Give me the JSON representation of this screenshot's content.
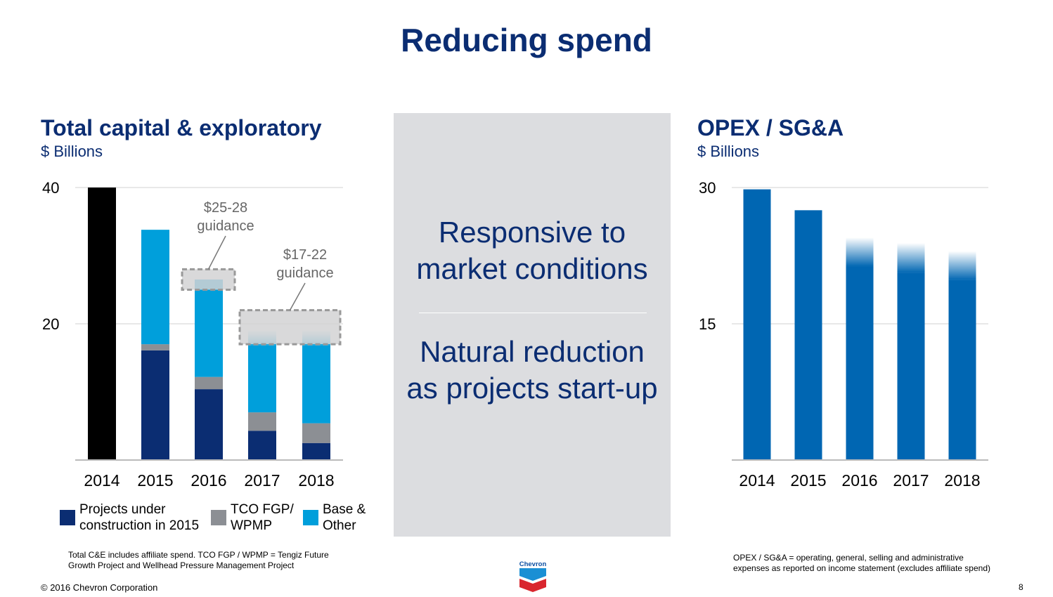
{
  "title": "Reducing spend",
  "center": {
    "line1": "Responsive to",
    "line2": "market conditions",
    "line3": "Natural reduction",
    "line4": "as projects start-up"
  },
  "chart_data": [
    {
      "type": "bar",
      "stacked": true,
      "title": "Total capital & exploratory",
      "subtitle": "$ Billions",
      "categories": [
        "2014",
        "2015",
        "2016",
        "2017",
        "2018"
      ],
      "ylim": [
        0,
        40
      ],
      "yticks": [
        "20",
        "40"
      ],
      "ytick_values": [
        20,
        40
      ],
      "grid": true,
      "series": [
        {
          "name": "Projects under construction in 2015",
          "color": "#0b2d72",
          "values": [
            0,
            16.1,
            10.4,
            4.3,
            2.5
          ]
        },
        {
          "name": "TCO FGP/ WPMP",
          "color": "#8c8f94",
          "values": [
            0,
            0.9,
            1.8,
            2.7,
            2.9
          ]
        },
        {
          "name": "Base & Other",
          "color": "#009fdb",
          "values": [
            0,
            16.8,
            14.3,
            12.1,
            13.7
          ]
        }
      ],
      "total_2014": {
        "value": 40,
        "color": "#000000"
      },
      "faded_top_categories": [
        "2017",
        "2018"
      ],
      "guidance": [
        {
          "categories": [
            "2016"
          ],
          "range": [
            25,
            28
          ],
          "label1": "$25-28",
          "label2": "guidance"
        },
        {
          "categories": [
            "2017",
            "2018"
          ],
          "range": [
            17,
            22
          ],
          "label1": "$17-22",
          "label2": "guidance"
        }
      ],
      "legend_placement": "bottom"
    },
    {
      "type": "bar",
      "title": "OPEX / SG&A",
      "subtitle": "$ Billions",
      "categories": [
        "2014",
        "2015",
        "2016",
        "2017",
        "2018"
      ],
      "values": [
        29.8,
        27.5,
        24.5,
        23.9,
        23.0
      ],
      "faded_from": [
        null,
        null,
        21.3,
        20.6,
        19.8
      ],
      "color": "#0066b2",
      "ylim": [
        0,
        30
      ],
      "yticks": [
        "15",
        "30"
      ],
      "ytick_values": [
        15,
        30
      ],
      "grid": true
    }
  ],
  "legend_lines": [
    [
      "Projects under",
      "construction in 2015"
    ],
    [
      "TCO FGP/",
      "WPMP"
    ],
    [
      "Base &",
      "Other"
    ]
  ],
  "notes": {
    "left1": "Total C&E includes affiliate spend. TCO FGP / WPMP = Tengiz Future",
    "left2": "Growth Project and Wellhead Pressure Management Project",
    "right1": "OPEX / SG&A = operating, general, selling and administrative",
    "right2": "expenses as reported on income statement (excludes affiliate spend)"
  },
  "footer": {
    "copyright": "© 2016 Chevron Corporation",
    "page": "8",
    "logo_text": "Chevron"
  }
}
